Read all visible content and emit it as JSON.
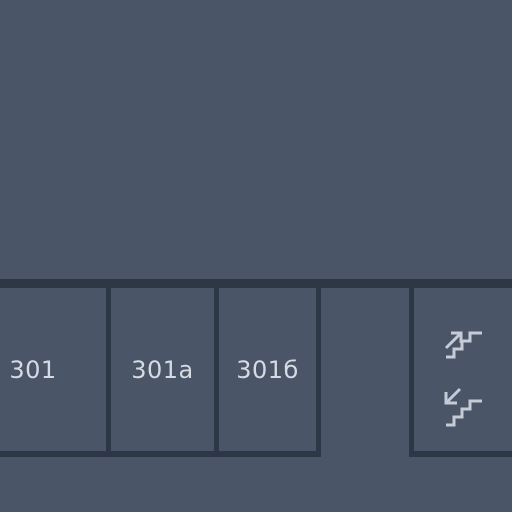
{
  "map": {
    "floor_rooms": [
      {
        "id": "301",
        "label": "301"
      },
      {
        "id": "301a",
        "label": "301a"
      },
      {
        "id": "301b",
        "label": "301б"
      }
    ],
    "icons": {
      "stairs_up": "stairs-up-icon",
      "stairs_down": "stairs-down-icon"
    },
    "colors": {
      "background": "#4a5568",
      "wall": "#2e3746",
      "label": "#d6dbe3",
      "icon": "#c5ccd6"
    }
  }
}
